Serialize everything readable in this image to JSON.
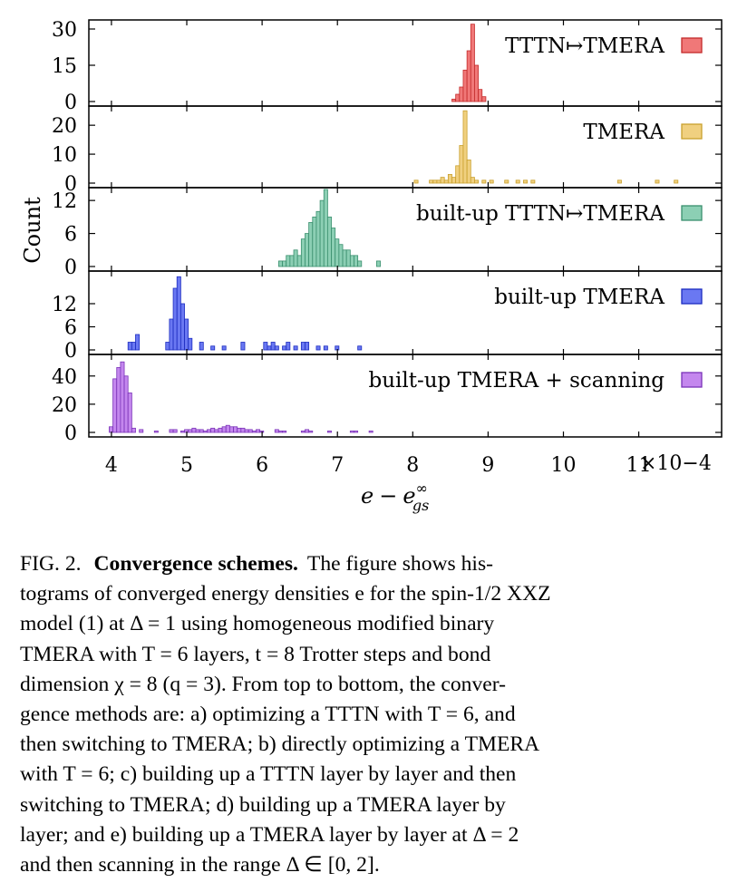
{
  "chart_data": [
    {
      "type": "bar",
      "legend": "TTTN↦TMERA",
      "legend_placement": "top-right",
      "color": "#f07878",
      "edge": "#c42a2a",
      "ylim": [
        0,
        33
      ],
      "yticks": [
        "0",
        "15",
        "30"
      ],
      "ytick_values": [
        0,
        15,
        30
      ],
      "bins": [
        [
          8.52,
          1
        ],
        [
          8.57,
          3
        ],
        [
          8.62,
          6
        ],
        [
          8.67,
          13
        ],
        [
          8.72,
          21
        ],
        [
          8.77,
          32
        ],
        [
          8.82,
          15
        ],
        [
          8.87,
          5
        ],
        [
          8.92,
          2
        ]
      ]
    },
    {
      "type": "bar",
      "legend": "TMERA",
      "legend_placement": "top-right",
      "color": "#f0d080",
      "edge": "#c9a02c",
      "ylim": [
        0,
        26
      ],
      "yticks": [
        "0",
        "10",
        "20"
      ],
      "ytick_values": [
        0,
        10,
        20
      ],
      "bins": [
        [
          8.02,
          1
        ],
        [
          8.22,
          1
        ],
        [
          8.27,
          1
        ],
        [
          8.32,
          1
        ],
        [
          8.37,
          2
        ],
        [
          8.42,
          1
        ],
        [
          8.47,
          3
        ],
        [
          8.52,
          2
        ],
        [
          8.57,
          6
        ],
        [
          8.62,
          13
        ],
        [
          8.67,
          25
        ],
        [
          8.72,
          8
        ],
        [
          8.77,
          2
        ],
        [
          8.82,
          1
        ],
        [
          8.92,
          1
        ],
        [
          9.02,
          1
        ],
        [
          9.22,
          1
        ],
        [
          9.37,
          1
        ],
        [
          9.47,
          1
        ],
        [
          9.57,
          1
        ],
        [
          10.72,
          1
        ],
        [
          11.22,
          1
        ],
        [
          11.47,
          1
        ]
      ]
    },
    {
      "type": "bar",
      "legend": "built-up TTTN↦TMERA",
      "legend_placement": "top-right",
      "color": "#8ccfb4",
      "edge": "#3a8f6e",
      "ylim": [
        0,
        14
      ],
      "yticks": [
        "0",
        "6",
        "12"
      ],
      "ytick_values": [
        0,
        6,
        12
      ],
      "bins": [
        [
          6.22,
          1
        ],
        [
          6.27,
          1
        ],
        [
          6.32,
          2
        ],
        [
          6.37,
          2
        ],
        [
          6.42,
          3
        ],
        [
          6.47,
          2
        ],
        [
          6.52,
          5
        ],
        [
          6.57,
          6
        ],
        [
          6.62,
          8
        ],
        [
          6.67,
          9
        ],
        [
          6.72,
          10
        ],
        [
          6.77,
          12
        ],
        [
          6.82,
          14
        ],
        [
          6.87,
          9
        ],
        [
          6.92,
          7
        ],
        [
          6.97,
          5
        ],
        [
          7.02,
          4
        ],
        [
          7.07,
          3
        ],
        [
          7.12,
          3
        ],
        [
          7.17,
          2
        ],
        [
          7.22,
          2
        ],
        [
          7.27,
          1
        ],
        [
          7.52,
          1
        ]
      ]
    },
    {
      "type": "bar",
      "legend": "built-up TMERA",
      "legend_placement": "top-right",
      "color": "#6a78f2",
      "edge": "#1c2cc0",
      "ylim": [
        0,
        20
      ],
      "yticks": [
        "0",
        "6",
        "12"
      ],
      "ytick_values": [
        0,
        6,
        12
      ],
      "bins": [
        [
          4.22,
          2
        ],
        [
          4.27,
          2
        ],
        [
          4.32,
          4
        ],
        [
          4.72,
          2
        ],
        [
          4.77,
          8
        ],
        [
          4.82,
          16
        ],
        [
          4.87,
          19
        ],
        [
          4.92,
          12
        ],
        [
          4.97,
          8
        ],
        [
          5.02,
          3
        ],
        [
          5.17,
          2
        ],
        [
          5.32,
          1
        ],
        [
          5.47,
          1
        ],
        [
          5.72,
          2
        ],
        [
          6.02,
          2
        ],
        [
          6.07,
          1
        ],
        [
          6.12,
          2
        ],
        [
          6.17,
          1
        ],
        [
          6.27,
          1
        ],
        [
          6.32,
          2
        ],
        [
          6.42,
          1
        ],
        [
          6.52,
          2
        ],
        [
          6.57,
          2
        ],
        [
          6.72,
          1
        ],
        [
          6.82,
          1
        ],
        [
          6.97,
          1
        ],
        [
          7.27,
          1
        ]
      ]
    },
    {
      "type": "bar",
      "legend": "built-up TMERA + scanning",
      "legend_placement": "top-right",
      "color": "#c487ee",
      "edge": "#7a32b8",
      "ylim": [
        0,
        54
      ],
      "yticks": [
        "0",
        "20",
        "40"
      ],
      "ytick_values": [
        0,
        20,
        40
      ],
      "bins": [
        [
          3.97,
          4
        ],
        [
          4.02,
          38
        ],
        [
          4.07,
          46
        ],
        [
          4.12,
          50
        ],
        [
          4.17,
          40
        ],
        [
          4.22,
          28
        ],
        [
          4.27,
          3
        ],
        [
          4.37,
          2
        ],
        [
          4.57,
          1
        ],
        [
          4.77,
          2
        ],
        [
          4.82,
          2
        ],
        [
          4.92,
          1
        ],
        [
          4.97,
          2
        ],
        [
          5.02,
          2
        ],
        [
          5.07,
          3
        ],
        [
          5.12,
          2
        ],
        [
          5.17,
          2
        ],
        [
          5.22,
          1
        ],
        [
          5.27,
          2
        ],
        [
          5.32,
          3
        ],
        [
          5.37,
          2
        ],
        [
          5.42,
          3
        ],
        [
          5.47,
          4
        ],
        [
          5.52,
          5
        ],
        [
          5.57,
          4
        ],
        [
          5.62,
          4
        ],
        [
          5.67,
          3
        ],
        [
          5.72,
          3
        ],
        [
          5.77,
          2
        ],
        [
          5.82,
          2
        ],
        [
          5.87,
          1
        ],
        [
          5.92,
          2
        ],
        [
          5.97,
          1
        ],
        [
          6.17,
          2
        ],
        [
          6.22,
          1
        ],
        [
          6.27,
          1
        ],
        [
          6.52,
          1
        ],
        [
          6.57,
          2
        ],
        [
          6.62,
          1
        ],
        [
          6.87,
          1
        ],
        [
          7.17,
          1
        ],
        [
          7.22,
          1
        ],
        [
          7.42,
          1
        ]
      ]
    }
  ],
  "axes": {
    "xlim": [
      3.7,
      12.1
    ],
    "xticks": [
      "4",
      "5",
      "6",
      "7",
      "8",
      "9",
      "10",
      "11"
    ],
    "xtick_values": [
      4,
      5,
      6,
      7,
      8,
      9,
      10,
      11
    ],
    "x_multiplier": "×10−4",
    "x_label": "e − e∞ gs",
    "x_label_parts": {
      "e": "e",
      "minus": "−",
      "sub_e": "e",
      "sup": "∞",
      "sub": "gs"
    },
    "y_label": "Count"
  },
  "caption": {
    "label": "FIG. 2.",
    "title": "Convergence schemes.",
    "lines": [
      "The figure shows his-",
      "tograms of converged energy densities e for the spin-1/2 XXZ",
      "model (1) at Δ = 1 using homogeneous modified binary",
      "TMERA with T = 6 layers, t = 8 Trotter steps and bond",
      "dimension χ = 8 (q = 3). From top to bottom, the conver-",
      "gence methods are: a) optimizing a TTTN with T = 6, and",
      "then switching to TMERA; b) directly optimizing a TMERA",
      "with T = 6; c) building up a TTTN layer by layer and then",
      "switching to TMERA; d) building up a TMERA layer by",
      "layer; and e) building up a TMERA layer by layer at Δ = 2",
      "and then scanning in the range Δ ∈ [0, 2]."
    ]
  }
}
